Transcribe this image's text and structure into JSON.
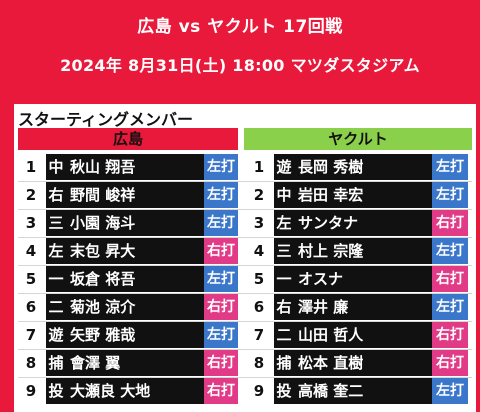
{
  "header": {
    "title": "広島 vs ヤクルト 17回戦",
    "subtitle": "2024年 8月31日(土) 18:00 マツダスタジアム"
  },
  "panel": {
    "title": "スターティングメンバー"
  },
  "teams": {
    "left": {
      "name": "広島",
      "color": "#e8193a"
    },
    "right": {
      "name": "ヤクルト",
      "color": "#8bd04a"
    }
  },
  "colors": {
    "lefty": "#3a76c9",
    "righty": "#e13a86"
  },
  "lineup": [
    {
      "order": "1",
      "left": {
        "pos": "中",
        "name": "秋山 翔吾",
        "bat": "左打"
      },
      "right": {
        "pos": "遊",
        "name": "長岡 秀樹",
        "bat": "左打"
      }
    },
    {
      "order": "2",
      "left": {
        "pos": "右",
        "name": "野間 峻祥",
        "bat": "左打"
      },
      "right": {
        "pos": "中",
        "name": "岩田 幸宏",
        "bat": "左打"
      }
    },
    {
      "order": "3",
      "left": {
        "pos": "三",
        "name": "小園 海斗",
        "bat": "左打"
      },
      "right": {
        "pos": "左",
        "name": "サンタナ",
        "bat": "右打"
      }
    },
    {
      "order": "4",
      "left": {
        "pos": "左",
        "name": "末包 昇大",
        "bat": "右打"
      },
      "right": {
        "pos": "三",
        "name": "村上 宗隆",
        "bat": "左打"
      }
    },
    {
      "order": "5",
      "left": {
        "pos": "一",
        "name": "坂倉 将吾",
        "bat": "左打"
      },
      "right": {
        "pos": "一",
        "name": "オスナ",
        "bat": "右打"
      }
    },
    {
      "order": "6",
      "left": {
        "pos": "二",
        "name": "菊池 涼介",
        "bat": "右打"
      },
      "right": {
        "pos": "右",
        "name": "澤井 廉",
        "bat": "左打"
      }
    },
    {
      "order": "7",
      "left": {
        "pos": "遊",
        "name": "矢野 雅哉",
        "bat": "左打"
      },
      "right": {
        "pos": "二",
        "name": "山田 哲人",
        "bat": "右打"
      }
    },
    {
      "order": "8",
      "left": {
        "pos": "捕",
        "name": "會澤 翼",
        "bat": "右打"
      },
      "right": {
        "pos": "捕",
        "name": "松本 直樹",
        "bat": "右打"
      }
    },
    {
      "order": "9",
      "left": {
        "pos": "投",
        "name": "大瀬良 大地",
        "bat": "右打"
      },
      "right": {
        "pos": "投",
        "name": "高橋 奎二",
        "bat": "左打"
      }
    }
  ]
}
